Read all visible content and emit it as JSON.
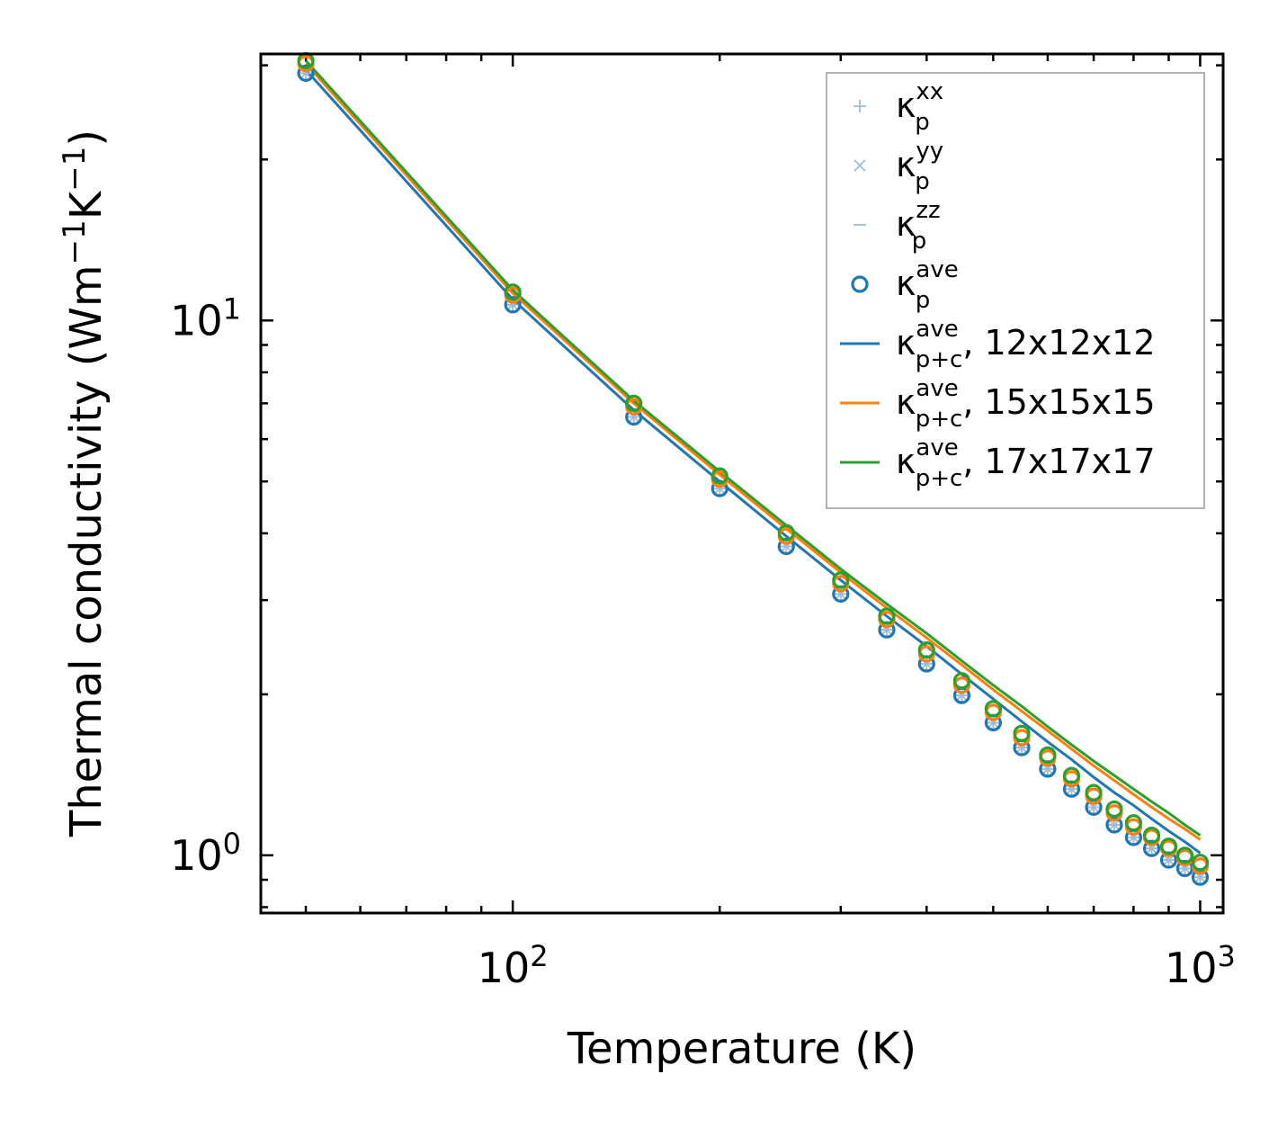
{
  "chart_data": {
    "type": "line",
    "title": "",
    "xlabel": "Temperature (K)",
    "ylabel_main": "Thermal conductivity (Wm",
    "ylabel_exp1": "−1",
    "ylabel_mid": "K",
    "ylabel_exp2": "−1",
    "ylabel_end": ")",
    "xscale": "log",
    "yscale": "log",
    "xlim": [
      43,
      1080
    ],
    "ylim": [
      0.78,
      31.5
    ],
    "xticks_major": [
      {
        "value": 100,
        "base": "10",
        "exp": "2"
      },
      {
        "value": 1000,
        "base": "10",
        "exp": "3"
      }
    ],
    "yticks_major": [
      {
        "value": 1,
        "base": "10",
        "exp": "0"
      },
      {
        "value": 10,
        "base": "10",
        "exp": "1"
      }
    ],
    "legend_position": "top-right",
    "temperatures": [
      50,
      100,
      150,
      200,
      250,
      300,
      350,
      400,
      450,
      500,
      550,
      600,
      650,
      700,
      750,
      800,
      850,
      900,
      950,
      1000
    ],
    "point_series": [
      {
        "name": "xx",
        "sym": "κ",
        "sub": "p",
        "sup": "xx",
        "marker": "plus",
        "color": "#9ebcd9",
        "values": [
          29.0,
          10.7,
          6.6,
          4.85,
          3.78,
          3.08,
          2.64,
          2.28,
          1.99,
          1.77,
          1.59,
          1.45,
          1.33,
          1.23,
          1.14,
          1.08,
          1.03,
          0.98,
          0.945,
          0.91
        ]
      },
      {
        "name": "yy",
        "sym": "κ",
        "sub": "p",
        "sup": "yy",
        "marker": "x",
        "color": "#9ebcd9",
        "values": [
          29.0,
          10.7,
          6.6,
          4.85,
          3.78,
          3.08,
          2.64,
          2.28,
          1.99,
          1.77,
          1.59,
          1.45,
          1.33,
          1.23,
          1.14,
          1.08,
          1.03,
          0.98,
          0.945,
          0.91
        ]
      },
      {
        "name": "zz",
        "sym": "κ",
        "sub": "p",
        "sup": "zz",
        "marker": "minus",
        "color": "#9ebcd9",
        "values": [
          29.0,
          10.7,
          6.6,
          4.85,
          3.78,
          3.08,
          2.64,
          2.28,
          1.99,
          1.77,
          1.59,
          1.45,
          1.33,
          1.23,
          1.14,
          1.08,
          1.03,
          0.98,
          0.945,
          0.91
        ]
      },
      {
        "name": "ave",
        "sym": "κ",
        "sub": "p",
        "sup": "ave",
        "marker": "circle",
        "color": "#1f77b4",
        "values": [
          29.0,
          10.7,
          6.6,
          4.85,
          3.78,
          3.08,
          2.64,
          2.28,
          1.99,
          1.77,
          1.59,
          1.45,
          1.33,
          1.23,
          1.14,
          1.08,
          1.03,
          0.98,
          0.945,
          0.91
        ]
      }
    ],
    "overlay_points": [
      {
        "name": "ave-15x15x15",
        "marker": "circle",
        "color": "#ff7f0e",
        "values": [
          30.2,
          11.15,
          6.9,
          5.05,
          3.95,
          3.22,
          2.76,
          2.38,
          2.08,
          1.85,
          1.66,
          1.52,
          1.39,
          1.29,
          1.2,
          1.13,
          1.08,
          1.03,
          0.99,
          0.955
        ]
      },
      {
        "name": "ave-17x17x17",
        "marker": "circle",
        "color": "#2ca02c",
        "values": [
          30.6,
          11.3,
          7.0,
          5.12,
          4.01,
          3.27,
          2.8,
          2.42,
          2.12,
          1.88,
          1.69,
          1.54,
          1.41,
          1.31,
          1.22,
          1.15,
          1.09,
          1.04,
          1.0,
          0.97
        ]
      }
    ],
    "line_series": [
      {
        "name": "12x12x12",
        "sym": "κ",
        "sub": "p+c",
        "sup": "ave",
        "suffix": ", 12x12x12",
        "color": "#1f77b4",
        "values": [
          29.4,
          10.95,
          6.8,
          5.0,
          3.95,
          3.27,
          2.8,
          2.46,
          2.18,
          1.96,
          1.78,
          1.63,
          1.51,
          1.4,
          1.31,
          1.24,
          1.17,
          1.11,
          1.06,
          1.01
        ]
      },
      {
        "name": "15x15x15",
        "sym": "κ",
        "sub": "p+c",
        "sup": "ave",
        "suffix": ", 15x15x15",
        "color": "#ff7f0e",
        "values": [
          30.2,
          11.25,
          7.0,
          5.15,
          4.08,
          3.38,
          2.9,
          2.55,
          2.27,
          2.04,
          1.86,
          1.71,
          1.58,
          1.47,
          1.38,
          1.3,
          1.23,
          1.17,
          1.12,
          1.07
        ]
      },
      {
        "name": "17x17x17",
        "sym": "κ",
        "sub": "p+c",
        "sup": "ave",
        "suffix": ", 17x17x17",
        "color": "#2ca02c",
        "values": [
          30.6,
          11.4,
          7.08,
          5.22,
          4.14,
          3.43,
          2.95,
          2.6,
          2.31,
          2.08,
          1.9,
          1.74,
          1.61,
          1.5,
          1.41,
          1.33,
          1.26,
          1.2,
          1.14,
          1.09
        ]
      }
    ]
  }
}
